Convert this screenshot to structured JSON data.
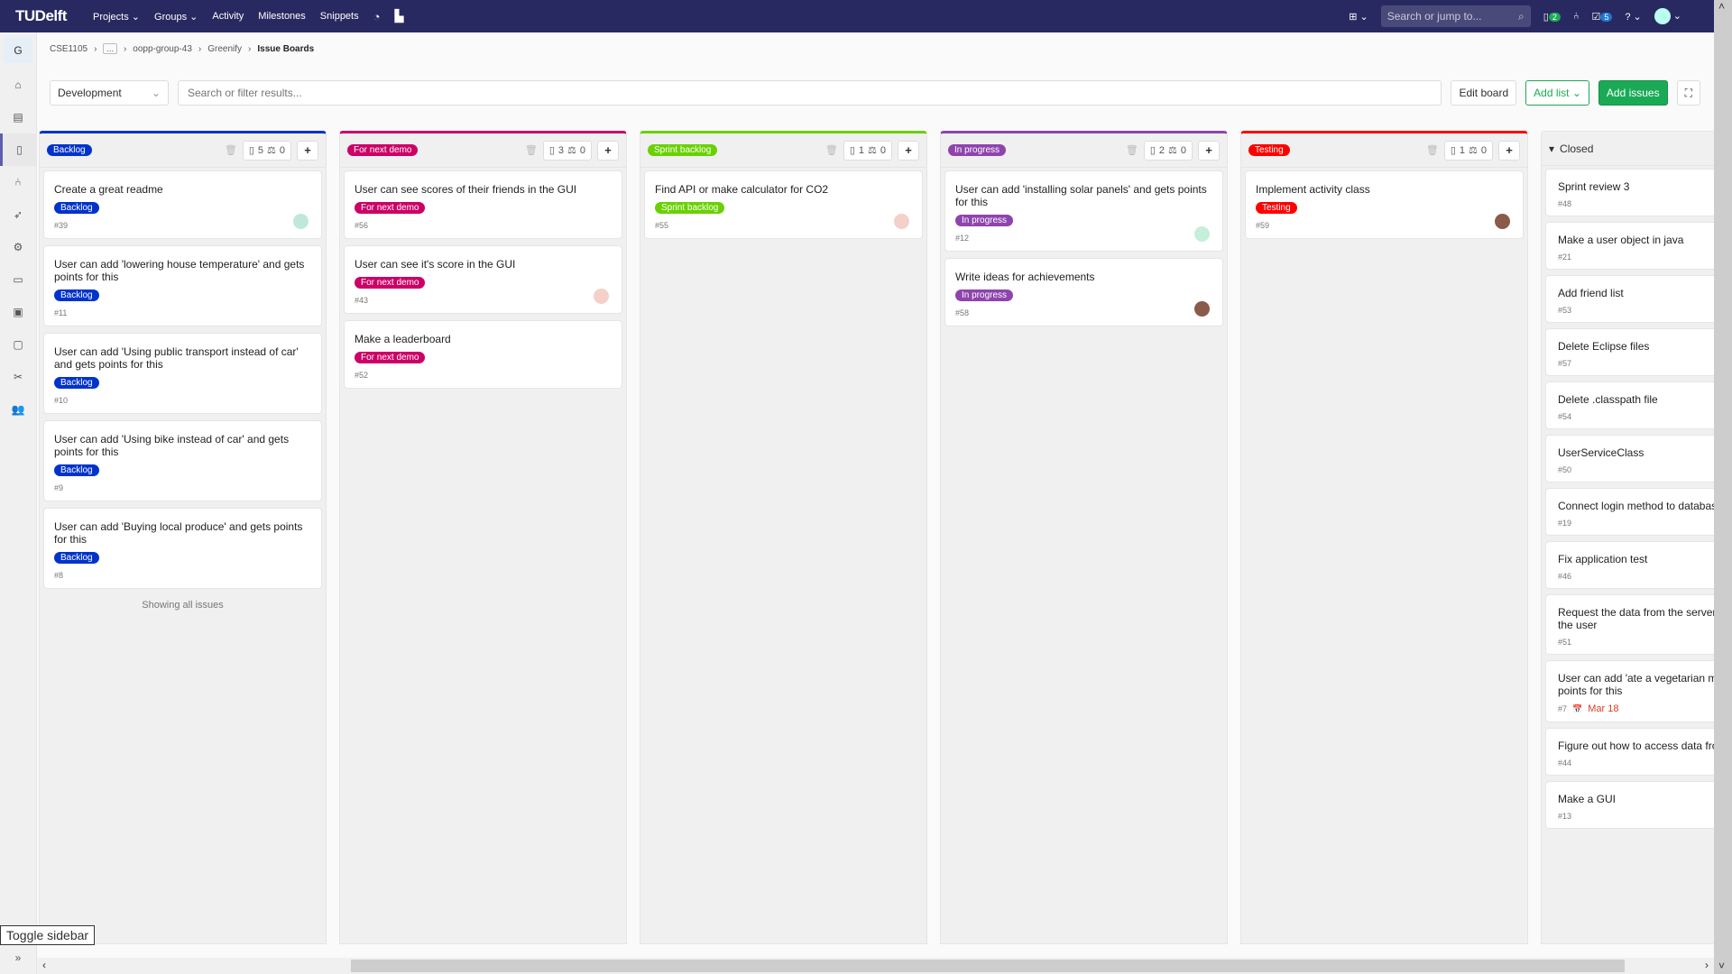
{
  "nav": {
    "logo": "TUDelft",
    "links": [
      "Projects ⌄",
      "Groups ⌄",
      "Activity",
      "Milestones",
      "Snippets"
    ],
    "search_placeholder": "Search or jump to...",
    "issues_count": "2",
    "todos_count": "5"
  },
  "sidebar": {
    "project_initial": "G",
    "items": [
      "home-icon",
      "overview-icon",
      "issues-icon",
      "merge-requests-icon",
      "ci-cd-icon",
      "operations-icon",
      "analytics-icon",
      "packages-icon",
      "wiki-icon",
      "snippets-icon",
      "members-icon"
    ]
  },
  "breadcrumb": [
    "CSE1105",
    "...",
    "oopp-group-43",
    "Greenify",
    "Issue Boards"
  ],
  "filter": {
    "board": "Development",
    "placeholder": "Search or filter results...",
    "edit_board": "Edit board",
    "add_list": "Add list ⌄",
    "add_issues": "Add issues"
  },
  "columns": [
    {
      "label": "Backlog",
      "color": "#0033cc",
      "issues": "5",
      "weight": "0",
      "cards": [
        {
          "title": "Create a great readme",
          "num": "#39",
          "avatar": true
        },
        {
          "title": "User can add 'lowering house temperature' and gets points for this",
          "num": "#11"
        },
        {
          "title": "User can add 'Using public transport instead of car' and gets points for this",
          "num": "#10"
        },
        {
          "title": "User can add 'Using bike instead of car' and gets points for this",
          "num": "#9"
        },
        {
          "title": "User can add 'Buying local produce' and gets points for this",
          "num": "#8"
        }
      ],
      "footer": "Showing all issues"
    },
    {
      "label": "For next demo",
      "color": "#cc0066",
      "issues": "3",
      "weight": "0",
      "cards": [
        {
          "title": "User can see scores of their friends in the GUI",
          "num": "#56"
        },
        {
          "title": "User can see it's score in the GUI",
          "num": "#43",
          "avatar": true
        },
        {
          "title": "Make a leaderboard",
          "num": "#52"
        }
      ]
    },
    {
      "label": "Sprint backlog",
      "color": "#69d100",
      "issues": "1",
      "weight": "0",
      "cards": [
        {
          "title": "Find API or make calculator for CO2",
          "num": "#55",
          "avatar": true
        }
      ]
    },
    {
      "label": "In progress",
      "color": "#8e44ad",
      "issues": "2",
      "weight": "0",
      "cards": [
        {
          "title": "User can add 'installing solar panels' and gets points for this",
          "num": "#12",
          "avatar": true
        },
        {
          "title": "Write ideas for achievements",
          "num": "#58",
          "avatar": true
        }
      ]
    },
    {
      "label": "Testing",
      "color": "#ff0000",
      "issues": "1",
      "weight": "0",
      "cards": [
        {
          "title": "Implement activity class",
          "num": "#59",
          "avatar": true
        }
      ]
    }
  ],
  "closed": {
    "label": "Closed",
    "cards": [
      {
        "title": "Sprint review 3",
        "num": "#48"
      },
      {
        "title": "Make a user object in java",
        "num": "#21"
      },
      {
        "title": "Add friend list",
        "num": "#53"
      },
      {
        "title": "Delete Eclipse files",
        "num": "#57"
      },
      {
        "title": "Delete .classpath file",
        "num": "#54"
      },
      {
        "title": "UserServiceClass",
        "num": "#50"
      },
      {
        "title": "Connect login method to database",
        "num": "#19"
      },
      {
        "title": "Fix application test",
        "num": "#46"
      },
      {
        "title": "Request the data from the server a\nthe user",
        "num": "#51"
      },
      {
        "title": "User can add 'ate a vegetarian mea\npoints for this",
        "num": "#7",
        "due": "Mar 18"
      },
      {
        "title": "Figure out how to access data fron",
        "num": "#44"
      },
      {
        "title": "Make a GUI",
        "num": "#13"
      }
    ]
  },
  "toggle_sidebar": "Toggle sidebar"
}
